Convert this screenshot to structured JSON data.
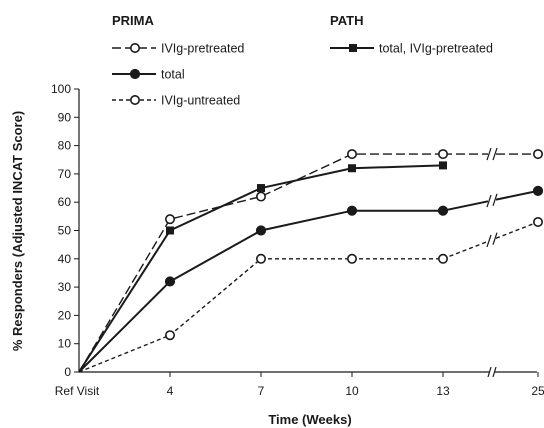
{
  "chart_data": {
    "type": "line",
    "xlabel": "Time (Weeks)",
    "ylabel": "% Responders (Adjusted INCAT Score)",
    "categories": [
      "Ref Visit",
      "4",
      "7",
      "10",
      "13",
      "25"
    ],
    "ylim": [
      0,
      100
    ],
    "yticks": [
      0,
      10,
      20,
      30,
      40,
      50,
      60,
      70,
      80,
      90,
      100
    ],
    "grid": false,
    "axis_break": "between 13 and 25",
    "legend_groups": [
      {
        "title": "PRIMA",
        "entries": [
          "IVIg-pretreated",
          "total",
          "IVIg-untreated"
        ]
      },
      {
        "title": "PATH",
        "entries": [
          "total, IVIg-pretreated"
        ]
      }
    ],
    "series": [
      {
        "name": "IVIg-pretreated",
        "group": "PRIMA",
        "line": "dashed",
        "marker": "open-circle",
        "values": [
          0,
          54,
          62,
          77,
          77,
          77
        ]
      },
      {
        "name": "total",
        "group": "PRIMA",
        "line": "solid",
        "marker": "filled-circle",
        "values": [
          0,
          32,
          50,
          57,
          57,
          64
        ]
      },
      {
        "name": "IVIg-untreated",
        "group": "PRIMA",
        "line": "dotted",
        "marker": "open-circle",
        "values": [
          0,
          13,
          40,
          40,
          40,
          53
        ]
      },
      {
        "name": "total, IVIg-pretreated",
        "group": "PATH",
        "line": "solid",
        "marker": "filled-square",
        "values": [
          0,
          50,
          65,
          72,
          73,
          null
        ]
      }
    ]
  }
}
